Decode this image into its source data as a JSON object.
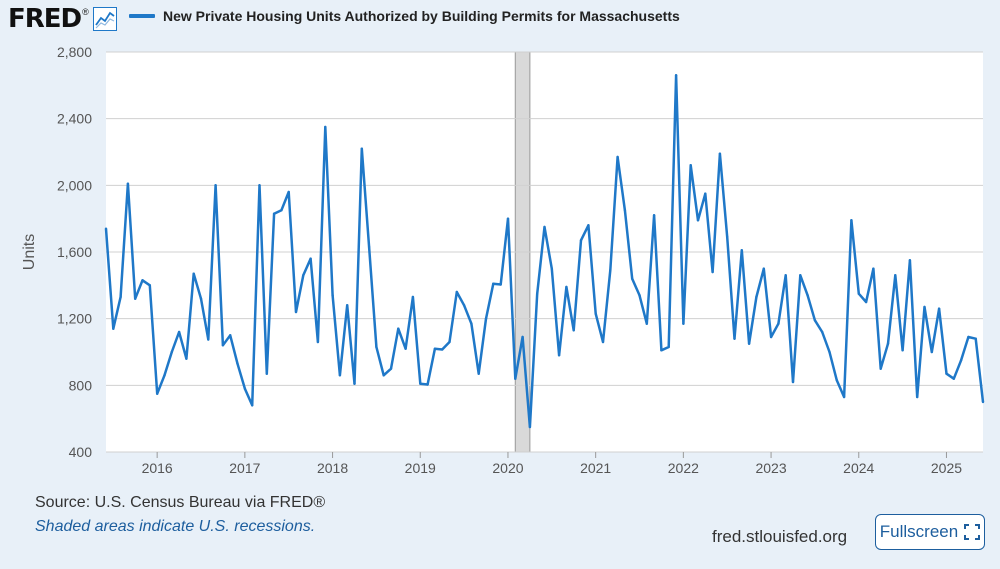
{
  "header": {
    "logo_text": "FRED",
    "logo_reg": "®",
    "logo_icon": "line-chart-icon",
    "legend_label": "New Private Housing Units Authorized by Building Permits for Massachusetts"
  },
  "colors": {
    "series": "#1f78c8",
    "recession": "#d9d9d9",
    "grid": "#d0d0d0",
    "plot_bg": "#ffffff",
    "page_bg": "#e8f0f8",
    "accent": "#1d5e9e"
  },
  "footer": {
    "source": "Source: U.S. Census Bureau via FRED®",
    "note": "Shaded areas indicate U.S. recessions.",
    "url": "fred.stlouisfed.org",
    "fullscreen_label": "Fullscreen",
    "fullscreen_icon": "expand-icon"
  },
  "chart_data": {
    "type": "line",
    "ylabel": "Units",
    "ylim": [
      400,
      2800
    ],
    "yticks": [
      400,
      800,
      1200,
      1600,
      2000,
      2400,
      2800
    ],
    "ytick_labels": [
      "400",
      "800",
      "1,200",
      "1,600",
      "2,000",
      "2,400",
      "2,800"
    ],
    "xticks": [
      2016,
      2017,
      2018,
      2019,
      2020,
      2021,
      2022,
      2023,
      2024,
      2025
    ],
    "xtick_labels": [
      "2016",
      "2017",
      "2018",
      "2019",
      "2020",
      "2021",
      "2022",
      "2023",
      "2024",
      "2025"
    ],
    "xlim": [
      "2015-06",
      "2025-06"
    ],
    "recession": {
      "start": "2020-02",
      "end": "2020-04"
    },
    "grid": true,
    "series": [
      {
        "name": "New Private Housing Units Authorized by Building Permits for Massachusetts",
        "x": [
          "2015-06",
          "2015-07",
          "2015-08",
          "2015-09",
          "2015-10",
          "2015-11",
          "2015-12",
          "2016-01",
          "2016-02",
          "2016-03",
          "2016-04",
          "2016-05",
          "2016-06",
          "2016-07",
          "2016-08",
          "2016-09",
          "2016-10",
          "2016-11",
          "2016-12",
          "2017-01",
          "2017-02",
          "2017-03",
          "2017-04",
          "2017-05",
          "2017-06",
          "2017-07",
          "2017-08",
          "2017-09",
          "2017-10",
          "2017-11",
          "2017-12",
          "2018-01",
          "2018-02",
          "2018-03",
          "2018-04",
          "2018-05",
          "2018-06",
          "2018-07",
          "2018-08",
          "2018-09",
          "2018-10",
          "2018-11",
          "2018-12",
          "2019-01",
          "2019-02",
          "2019-03",
          "2019-04",
          "2019-05",
          "2019-06",
          "2019-07",
          "2019-08",
          "2019-09",
          "2019-10",
          "2019-11",
          "2019-12",
          "2020-01",
          "2020-02",
          "2020-03",
          "2020-04",
          "2020-05",
          "2020-06",
          "2020-07",
          "2020-08",
          "2020-09",
          "2020-10",
          "2020-11",
          "2020-12",
          "2021-01",
          "2021-02",
          "2021-03",
          "2021-04",
          "2021-05",
          "2021-06",
          "2021-07",
          "2021-08",
          "2021-09",
          "2021-10",
          "2021-11",
          "2021-12",
          "2022-01",
          "2022-02",
          "2022-03",
          "2022-04",
          "2022-05",
          "2022-06",
          "2022-07",
          "2022-08",
          "2022-09",
          "2022-10",
          "2022-11",
          "2022-12",
          "2023-01",
          "2023-02",
          "2023-03",
          "2023-04",
          "2023-05",
          "2023-06",
          "2023-07",
          "2023-08",
          "2023-09",
          "2023-10",
          "2023-11",
          "2023-12",
          "2024-01",
          "2024-02",
          "2024-03",
          "2024-04",
          "2024-05",
          "2024-06",
          "2024-07",
          "2024-08",
          "2024-09",
          "2024-10",
          "2024-11",
          "2024-12",
          "2025-01",
          "2025-02",
          "2025-03",
          "2025-04",
          "2025-05",
          "2025-06"
        ],
        "values": [
          1740,
          1140,
          1330,
          2010,
          1320,
          1430,
          1400,
          750,
          860,
          1000,
          1120,
          960,
          1470,
          1320,
          1075,
          2000,
          1040,
          1100,
          930,
          780,
          680,
          2000,
          870,
          1830,
          1850,
          1960,
          1240,
          1460,
          1560,
          1060,
          2350,
          1340,
          860,
          1280,
          810,
          2220,
          1630,
          1030,
          860,
          900,
          1140,
          1020,
          1330,
          810,
          805,
          1020,
          1015,
          1060,
          1360,
          1280,
          1170,
          870,
          1200,
          1410,
          1405,
          1800,
          840,
          1090,
          550,
          1350,
          1750,
          1500,
          980,
          1390,
          1130,
          1670,
          1760,
          1230,
          1060,
          1490,
          2170,
          1850,
          1440,
          1340,
          1170,
          1820,
          1010,
          1030,
          2660,
          1170,
          2120,
          1790,
          1950,
          1480,
          2190,
          1690,
          1080,
          1610,
          1050,
          1330,
          1500,
          1090,
          1170,
          1460,
          820,
          1460,
          1340,
          1190,
          1120,
          1000,
          830,
          730,
          1790,
          1350,
          1300,
          1500,
          900,
          1050,
          1460,
          1010,
          1550,
          730,
          1270,
          1000,
          1260,
          870,
          840,
          950,
          1090,
          1080,
          700
        ]
      }
    ]
  }
}
